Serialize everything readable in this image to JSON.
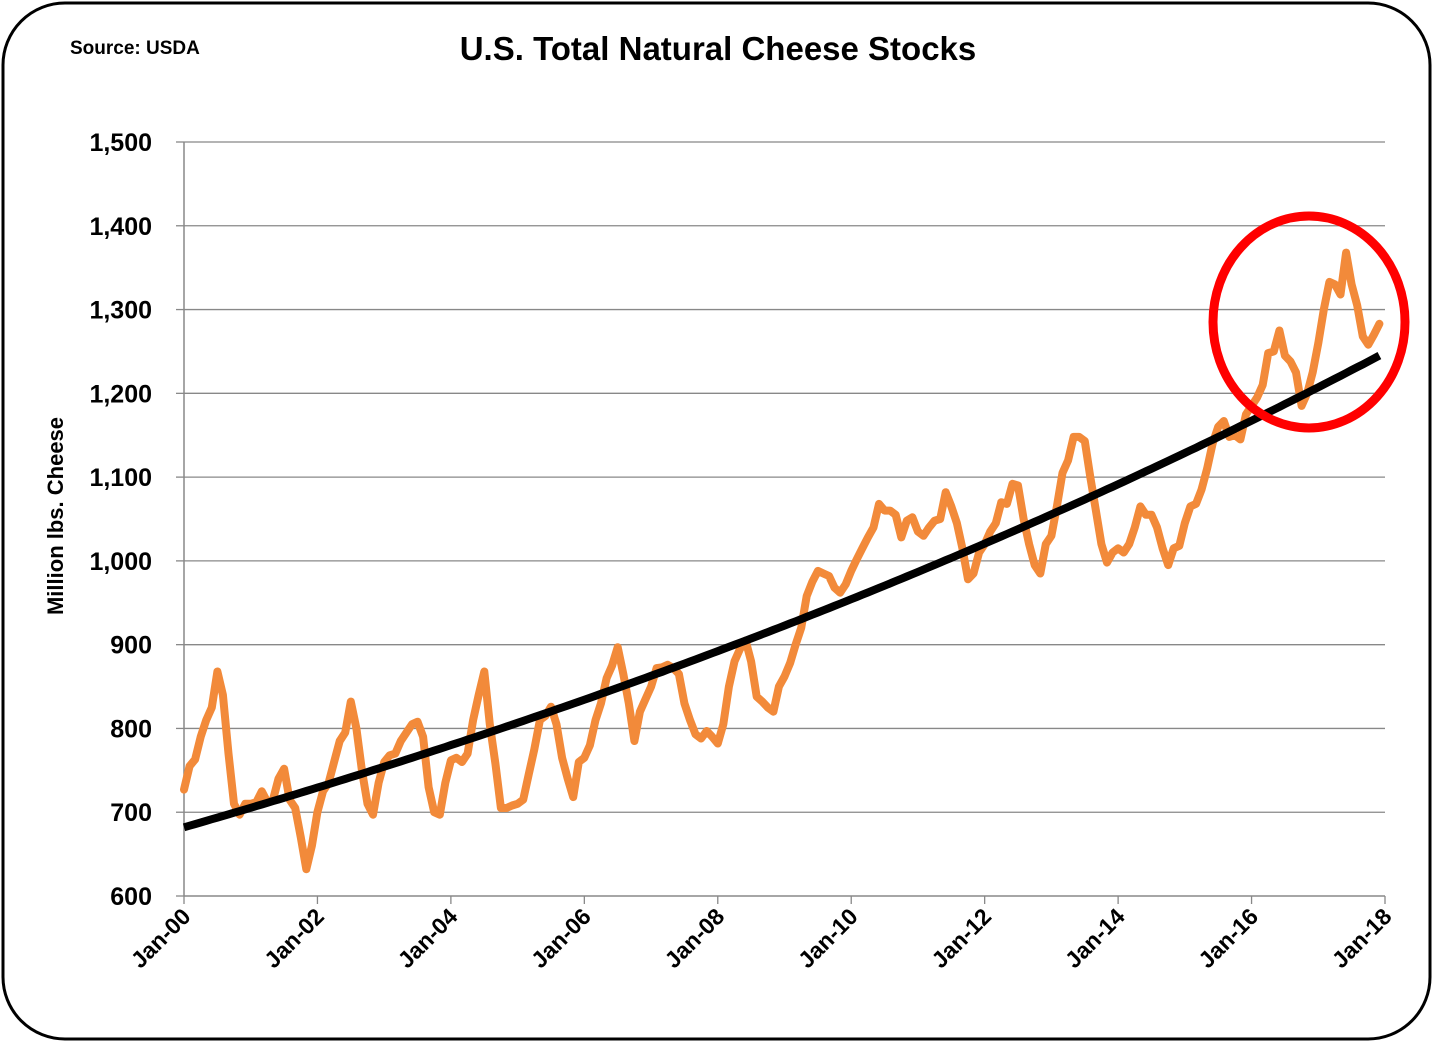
{
  "chart_data": {
    "type": "line",
    "title": "U.S. Total Natural Cheese Stocks",
    "source": "Source: USDA",
    "xlabel": "",
    "ylabel": "Million lbs. Cheese",
    "ylim": [
      600,
      1500
    ],
    "yticks": [
      "600",
      "700",
      "800",
      "900",
      "1,000",
      "1,100",
      "1,200",
      "1,300",
      "1,400",
      "1,500"
    ],
    "ytick_values": [
      600,
      700,
      800,
      900,
      1000,
      1100,
      1200,
      1300,
      1400,
      1500
    ],
    "xticks": [
      "Jan-00",
      "Jan-02",
      "Jan-04",
      "Jan-06",
      "Jan-08",
      "Jan-10",
      "Jan-12",
      "Jan-14",
      "Jan-16",
      "Jan-18"
    ],
    "x_start": "Jan-00",
    "x_end": "Jan-18",
    "x_frequency": "monthly",
    "grid": "horizontal",
    "legend": "none",
    "series": [
      {
        "color": "#F28A3A",
        "start": "Jan-00",
        "values": [
          727,
          755,
          763,
          790,
          810,
          825,
          868,
          840,
          770,
          710,
          697,
          710,
          710,
          712,
          725,
          712,
          715,
          740,
          752,
          715,
          705,
          670,
          632,
          660,
          700,
          725,
          735,
          760,
          785,
          795,
          832,
          800,
          750,
          710,
          697,
          735,
          760,
          768,
          770,
          785,
          795,
          805,
          808,
          790,
          730,
          700,
          697,
          735,
          762,
          765,
          760,
          770,
          810,
          840,
          868,
          805,
          758,
          705,
          705,
          708,
          710,
          715,
          745,
          775,
          810,
          815,
          826,
          805,
          765,
          740,
          718,
          760,
          765,
          780,
          810,
          830,
          860,
          875,
          897,
          865,
          830,
          785,
          820,
          835,
          850,
          872,
          873,
          876,
          872,
          865,
          830,
          810,
          793,
          788,
          797,
          790,
          782,
          805,
          850,
          880,
          895,
          905,
          880,
          838,
          832,
          825,
          820,
          850,
          862,
          878,
          900,
          920,
          958,
          975,
          988,
          985,
          982,
          968,
          962,
          972,
          988,
          1002,
          1015,
          1028,
          1040,
          1068,
          1060,
          1060,
          1055,
          1028,
          1048,
          1052,
          1035,
          1030,
          1040,
          1048,
          1050,
          1082,
          1065,
          1045,
          1015,
          978,
          985,
          1010,
          1020,
          1035,
          1045,
          1070,
          1068,
          1092,
          1090,
          1050,
          1020,
          995,
          985,
          1020,
          1030,
          1065,
          1105,
          1120,
          1148,
          1148,
          1143,
          1100,
          1060,
          1020,
          998,
          1010,
          1015,
          1010,
          1020,
          1040,
          1065,
          1055,
          1055,
          1040,
          1015,
          995,
          1015,
          1018,
          1045,
          1065,
          1068,
          1085,
          1110,
          1140,
          1160,
          1167,
          1148,
          1150,
          1145,
          1175,
          1185,
          1195,
          1210,
          1248,
          1250,
          1275,
          1245,
          1238,
          1225,
          1185,
          1200,
          1225,
          1260,
          1300,
          1333,
          1330,
          1318,
          1368,
          1330,
          1305,
          1268,
          1258,
          1270,
          1283
        ]
      }
    ],
    "trendline": {
      "type": "exponential",
      "color": "#000000",
      "start_value": 682,
      "end_value": 1245
    },
    "annotation": {
      "shape": "circle",
      "color": "#FF0000",
      "around": [
        "Jan-16",
        "Jan-18"
      ]
    }
  }
}
